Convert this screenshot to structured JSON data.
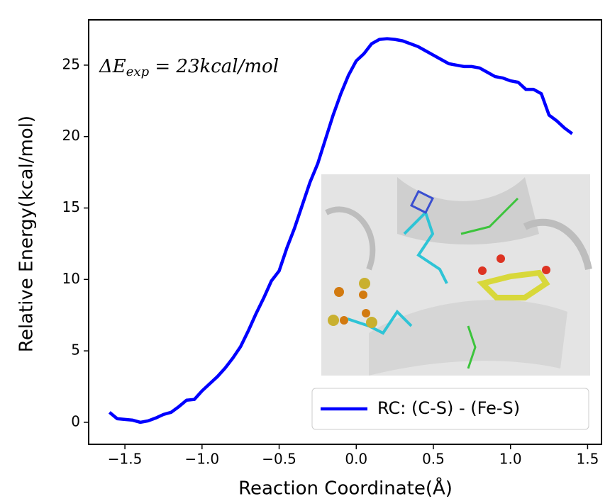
{
  "chart_data": {
    "type": "line",
    "xlabel": "Reaction Coordinate(Å)",
    "ylabel": "Relative Energy(kcal/mol)",
    "annotation": {
      "base": "ΔE",
      "sub": "exp",
      "rest": " = 23kcal/mol"
    },
    "x": [
      -1.6,
      -1.55,
      -1.5,
      -1.45,
      -1.4,
      -1.35,
      -1.3,
      -1.25,
      -1.2,
      -1.15,
      -1.1,
      -1.05,
      -1.0,
      -0.95,
      -0.9,
      -0.85,
      -0.8,
      -0.75,
      -0.7,
      -0.65,
      -0.6,
      -0.55,
      -0.5,
      -0.45,
      -0.4,
      -0.35,
      -0.3,
      -0.25,
      -0.2,
      -0.15,
      -0.1,
      -0.05,
      0.0,
      0.05,
      0.1,
      0.15,
      0.2,
      0.25,
      0.3,
      0.35,
      0.4,
      0.45,
      0.5,
      0.55,
      0.6,
      0.65,
      0.7,
      0.75,
      0.8,
      0.85,
      0.9,
      0.95,
      1.0,
      1.05,
      1.1,
      1.15,
      1.2,
      1.25,
      1.3,
      1.35,
      1.4
    ],
    "series": [
      {
        "name": "RC: (C-S) - (Fe-S)",
        "color": "#0000ff",
        "values": [
          0.7,
          0.25,
          0.2,
          0.15,
          0.0,
          0.1,
          0.3,
          0.55,
          0.7,
          1.1,
          1.55,
          1.6,
          2.2,
          2.7,
          3.2,
          3.8,
          4.5,
          5.3,
          6.4,
          7.6,
          8.7,
          9.9,
          10.6,
          12.2,
          13.6,
          15.2,
          16.8,
          18.1,
          19.8,
          21.5,
          23.0,
          24.3,
          25.3,
          25.8,
          26.5,
          26.8,
          26.85,
          26.8,
          26.7,
          26.5,
          26.3,
          26.0,
          25.7,
          25.4,
          25.1,
          25.0,
          24.9,
          24.9,
          24.8,
          24.5,
          24.2,
          24.1,
          23.9,
          23.8,
          23.3,
          23.3,
          23.0,
          21.5,
          21.1,
          20.6,
          20.2
        ]
      }
    ],
    "xlim": [
      -1.735,
      1.59
    ],
    "ylim": [
      -1.54,
      28.17
    ],
    "xticks": [
      {
        "value": -1.5,
        "label": "−1.5"
      },
      {
        "value": -1.0,
        "label": "−1.0"
      },
      {
        "value": -0.5,
        "label": "−0.5"
      },
      {
        "value": 0.0,
        "label": "0.0"
      },
      0.5,
      {
        "value": 1.0,
        "label": "1.0"
      },
      1.5
    ],
    "yticks": [
      0,
      5,
      10,
      15,
      20,
      25
    ],
    "legend": "lower right"
  }
}
